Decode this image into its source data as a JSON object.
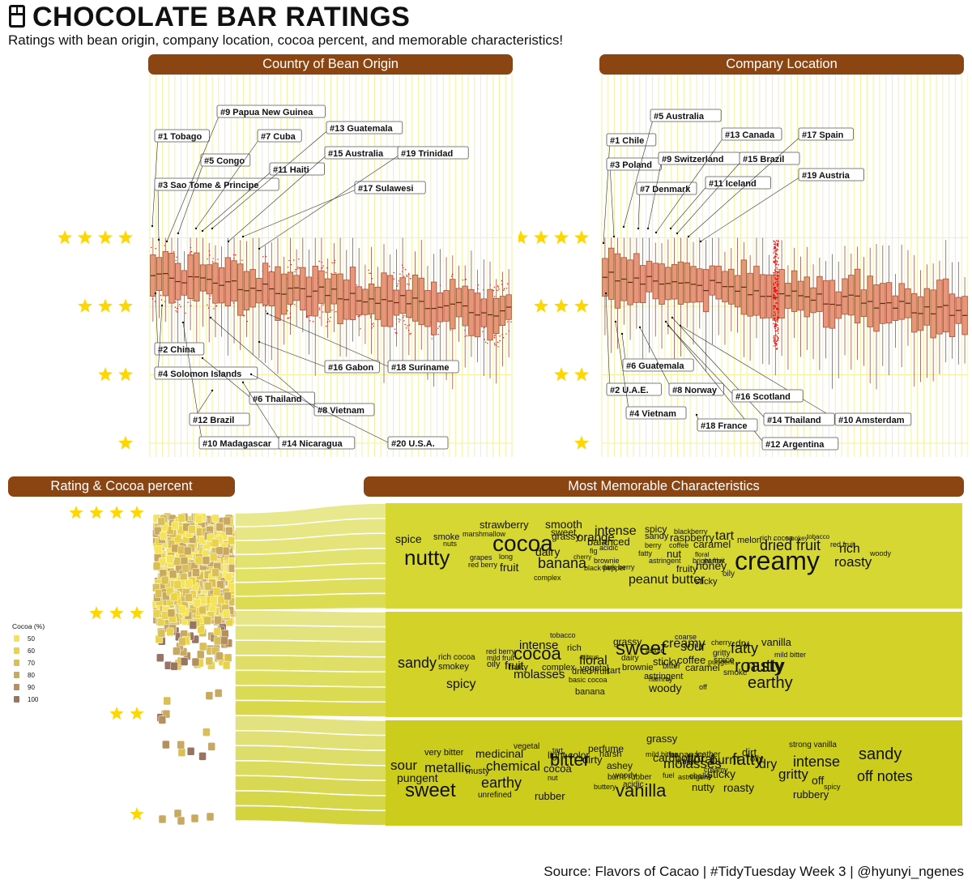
{
  "header": {
    "title": "CHOCOLATE BAR RATINGS",
    "subtitle": "Ratings with bean origin, company location, cocoa percent, and memorable characteristics!"
  },
  "panels": {
    "origin": "Country of Bean Origin",
    "company": "Company Location",
    "cocoa": "Rating & Cocoa percent",
    "memorable": "Most Memorable Characteristics"
  },
  "source": "Source: Flavors of Cacao | #TidyTuesday Week 3 | @hyunyi_ngenes",
  "colors": {
    "strip": "#8b4513",
    "box": "#e8967a",
    "star": "#ffd700",
    "band": "#d4d431",
    "grid": "#f2f2a0",
    "jitter": "#ff0000"
  },
  "chart_data": [
    {
      "type": "boxplot",
      "title": "Country of Bean Origin",
      "y_axis": "rating (stars)",
      "ylim": [
        1,
        4
      ],
      "labels_top": [
        "#1 Tobago",
        "#3 Sao Tome & Principe",
        "#5 Congo",
        "#7 Cuba",
        "#9 Papua New Guinea",
        "#11 Haiti",
        "#13 Guatemala",
        "#15 Australia",
        "#17 Sulawesi",
        "#19 Trinidad"
      ],
      "labels_bottom": [
        "#2 China",
        "#4 Solomon Islands",
        "#6 Thailand",
        "#8 Vietnam",
        "#10 Madagascar",
        "#12 Brazil",
        "#14 Nicaragua",
        "#16 Gabon",
        "#18 Suriname",
        "#20 U.S.A."
      ]
    },
    {
      "type": "boxplot",
      "title": "Company Location",
      "y_axis": "rating (stars)",
      "ylim": [
        1,
        4
      ],
      "labels_top": [
        "#1 Chile",
        "#3 Poland",
        "#5 Australia",
        "#7 Denmark",
        "#9 Switzerland",
        "#11 Iceland",
        "#13 Canada",
        "#15 Brazil",
        "#17 Spain",
        "#19 Austria"
      ],
      "labels_bottom": [
        "#2 U.A.E.",
        "#4 Vietnam",
        "#6 Guatemala",
        "#8 Norway",
        "#10 Amsterdam",
        "#12 Argentina",
        "#14 Thailand",
        "#16 Scotland",
        "#18 France"
      ]
    },
    {
      "type": "scatter",
      "title": "Rating & Cocoa percent",
      "legend_title": "Cocoa (%)",
      "legend": [
        "50",
        "60",
        "70",
        "80",
        "90",
        "100"
      ]
    },
    {
      "type": "wordcloud",
      "title": "Most Memorable Characteristics",
      "bands": [
        {
          "rating": "4 stars",
          "words": [
            "spice",
            "nutty",
            "strawberry",
            "smoke",
            "marshmallow",
            "nuts",
            "grapes",
            "red berry",
            "cocoa",
            "long",
            "fruit",
            "sweet",
            "smooth",
            "grassy",
            "dairy",
            "banana",
            "complex",
            "orange",
            "cherry",
            "balanced",
            "fig",
            "brownie",
            "black pepper",
            "intense",
            "acidic",
            "dark berry",
            "peanut butter",
            "spicy",
            "sandy",
            "fatty",
            "berry",
            "astringent",
            "blackberry",
            "raspberry",
            "coffee",
            "nut",
            "fruity",
            "honey",
            "sticky",
            "floral",
            "bright fruit",
            "earthy",
            "caramel",
            "oily",
            "tart",
            "melon",
            "rich cocoa",
            "creamy",
            "smokey",
            "dried fruit",
            "tobacco",
            "rich",
            "red fruit",
            "roasty",
            "woody"
          ]
        },
        {
          "rating": "3 stars",
          "words": [
            "sandy",
            "rich cocoa",
            "smokey",
            "red berry",
            "mild fruit",
            "oily",
            "spicy",
            "fruit",
            "cocoa",
            "fruity",
            "intense",
            "tobacco",
            "complex",
            "molasses",
            "dried fruit",
            "rich",
            "floral",
            "vegetal",
            "citrus",
            "basic cocoa",
            "banana",
            "grassy",
            "sweet",
            "tart",
            "dairy",
            "brownie",
            "acidic",
            "sticky",
            "hammy",
            "bitter",
            "astringent",
            "coarse",
            "creamy",
            "sour",
            "coffee",
            "caramel",
            "woody",
            "pungent",
            "off",
            "cherry",
            "gritty",
            "spice",
            "fatty",
            "dry",
            "smoke",
            "roasty",
            "mild bitter",
            "earthy",
            "nutty",
            "vanilla"
          ]
        },
        {
          "rating": "2 stars",
          "words": [
            "very bitter",
            "sour",
            "metallic",
            "pungent",
            "sweet",
            "medicinal",
            "chemical",
            "musty",
            "earthy",
            "unrefined",
            "vegetal",
            "tart",
            "light color",
            "cocoa",
            "nut",
            "rubber",
            "bitter",
            "dirty",
            "perfume",
            "harsh",
            "ashey",
            "burnt rubber",
            "buttery",
            "grassy",
            "woody",
            "acidic",
            "vanilla",
            "mild bitter",
            "fuel",
            "cardboard",
            "molasses",
            "astringent",
            "banana",
            "fruity",
            "leather",
            "sticky",
            "chalky",
            "creamy",
            "nutty",
            "burnt",
            "floral",
            "dirt",
            "fatty",
            "roasty",
            "oily",
            "dry",
            "strong vanilla",
            "intense",
            "gritty",
            "rubbery",
            "off",
            "spicy",
            "sandy",
            "off notes"
          ]
        }
      ]
    }
  ]
}
